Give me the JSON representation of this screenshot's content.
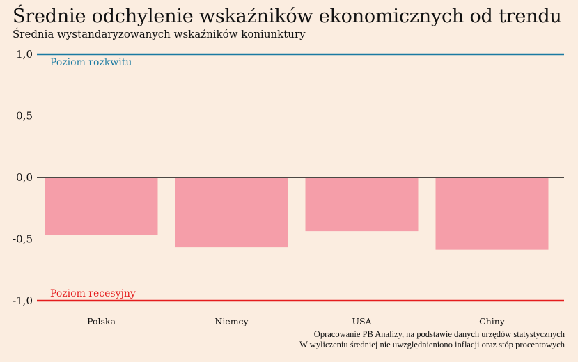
{
  "title": "Średnie odchylenie wskaźników ekonomicznych od trendu",
  "subtitle": "Średnia wystandaryzowanych wskaźników koniunktury",
  "source_lines": [
    "Opracowanie PB Analizy, na podstawie danych urzędów statystycznych",
    "W wyliczeniu średniej nie uwzględnieniono inflacji oraz stóp procentowych"
  ],
  "colors": {
    "background": "#fbede0",
    "bar": "#f59ea9",
    "boom_line": "#1a7aa2",
    "recession_line": "#e41d1d"
  },
  "chart_data": {
    "type": "bar",
    "categories": [
      "Polska",
      "Niemcy",
      "USA",
      "Chiny"
    ],
    "values": [
      -0.46,
      -0.56,
      -0.43,
      -0.58
    ],
    "ylim": [
      -1.0,
      1.0
    ],
    "yticks": [
      1.0,
      0.5,
      0.0,
      -0.5,
      -1.0
    ],
    "ytick_labels": [
      "1,0",
      "0,5",
      "0,0",
      "-0,5",
      "-1,0"
    ],
    "gridlines": "dotted",
    "reference_lines": [
      {
        "value": 1.0,
        "label": "Poziom rozkwitu",
        "color": "#1a7aa2"
      },
      {
        "value": -1.0,
        "label": "Poziom recesyjny",
        "color": "#e41d1d"
      }
    ]
  }
}
